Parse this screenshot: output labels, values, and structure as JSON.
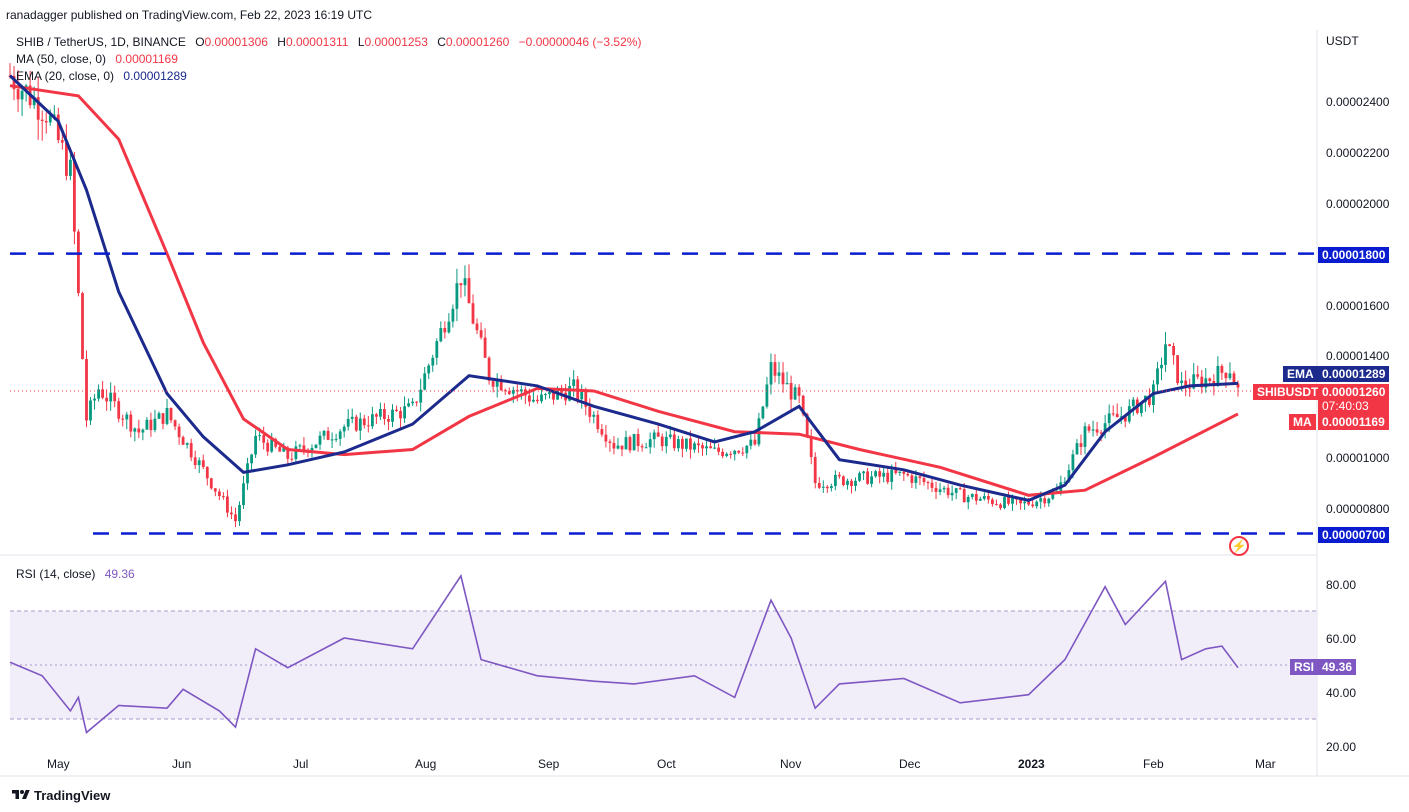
{
  "header": {
    "publisher": "ranadagger published on TradingView.com, Feb 22, 2023 16:19 UTC"
  },
  "symbol": {
    "name": "SHIB / TetherUS, 1D, BINANCE",
    "o_label": "O",
    "o": "0.00001306",
    "h_label": "H",
    "h": "0.00001311",
    "l_label": "L",
    "l": "0.00001253",
    "c_label": "C",
    "c": "0.00001260",
    "change": "−0.00000046 (−3.52%)"
  },
  "indicators": {
    "ma_label": "MA (50, close, 0)",
    "ma_value": "0.00001169",
    "ema_label": "EMA (20, close, 0)",
    "ema_value": "0.00001289",
    "rsi_label": "RSI (14, close)",
    "rsi_value": "49.36"
  },
  "axis": {
    "currency": "USDT",
    "price_ticks": [
      "0.00002400",
      "0.00002200",
      "0.00002000",
      "0.00001600",
      "0.00001400",
      "0.00001000",
      "0.00000800"
    ],
    "rsi_ticks": [
      "80.00",
      "60.00",
      "40.00",
      "20.00"
    ],
    "months": [
      "May",
      "Jun",
      "Jul",
      "Aug",
      "Sep",
      "Oct",
      "Nov",
      "Dec",
      "2023",
      "Feb",
      "Mar"
    ]
  },
  "tags": {
    "level_high": "0.00001800",
    "level_low": "0.00000700",
    "ema_tag": "EMA",
    "ema_val": "0.00001289",
    "sym_tag": "SHIBUSDT",
    "sym_val": "0.00001260",
    "countdown": "07:40:03",
    "ma_tag": "MA",
    "ma_val": "0.00001169",
    "rsi_tag": "RSI",
    "rsi_val": "49.36"
  },
  "footer": {
    "brand": "TradingView"
  },
  "colors": {
    "up": "#089981",
    "down": "#f23645",
    "ema": "#1b2a8c",
    "ma": "#f23645",
    "rsi": "#7e57c2",
    "level": "#0a1cd0"
  },
  "chart_data": {
    "type": "candlestick",
    "price_range": [
      6.3e-06,
      2.62e-05
    ],
    "rsi_range": [
      16,
      90
    ],
    "levels": [
      1.8e-05,
      7e-06
    ],
    "ema20": [
      [
        "2022-04-23",
        2.5e-05
      ],
      [
        "2022-05-05",
        2.32e-05
      ],
      [
        "2022-05-12",
        2.05e-05
      ],
      [
        "2022-05-20",
        1.65e-05
      ],
      [
        "2022-06-01",
        1.25e-05
      ],
      [
        "2022-06-10",
        1.08e-05
      ],
      [
        "2022-06-20",
        9.4e-06
      ],
      [
        "2022-07-01",
        9.7e-06
      ],
      [
        "2022-07-15",
        1.02e-05
      ],
      [
        "2022-08-01",
        1.13e-05
      ],
      [
        "2022-08-15",
        1.32e-05
      ],
      [
        "2022-09-01",
        1.28e-05
      ],
      [
        "2022-09-15",
        1.2e-05
      ],
      [
        "2022-10-01",
        1.13e-05
      ],
      [
        "2022-10-15",
        1.06e-05
      ],
      [
        "2022-10-25",
        1.1e-05
      ],
      [
        "2022-11-05",
        1.2e-05
      ],
      [
        "2022-11-15",
        9.9e-06
      ],
      [
        "2022-12-01",
        9.5e-06
      ],
      [
        "2022-12-15",
        8.9e-06
      ],
      [
        "2023-01-01",
        8.3e-06
      ],
      [
        "2023-01-10",
        8.9e-06
      ],
      [
        "2023-01-20",
        1.1e-05
      ],
      [
        "2023-02-01",
        1.25e-05
      ],
      [
        "2023-02-10",
        1.28e-05
      ],
      [
        "2023-02-22",
        1.29e-05
      ]
    ],
    "ma50": [
      [
        "2022-04-23",
        2.46e-05
      ],
      [
        "2022-05-10",
        2.42e-05
      ],
      [
        "2022-05-20",
        2.25e-05
      ],
      [
        "2022-06-01",
        1.8e-05
      ],
      [
        "2022-06-10",
        1.45e-05
      ],
      [
        "2022-06-20",
        1.15e-05
      ],
      [
        "2022-07-01",
        1.03e-05
      ],
      [
        "2022-07-15",
        1.01e-05
      ],
      [
        "2022-08-01",
        1.03e-05
      ],
      [
        "2022-08-15",
        1.16e-05
      ],
      [
        "2022-09-01",
        1.27e-05
      ],
      [
        "2022-09-15",
        1.26e-05
      ],
      [
        "2022-10-01",
        1.18e-05
      ],
      [
        "2022-10-20",
        1.1e-05
      ],
      [
        "2022-11-05",
        1.09e-05
      ],
      [
        "2022-11-20",
        1.03e-05
      ],
      [
        "2022-12-10",
        9.6e-06
      ],
      [
        "2023-01-01",
        8.5e-06
      ],
      [
        "2023-01-15",
        8.7e-06
      ],
      [
        "2023-02-01",
        1e-05
      ],
      [
        "2023-02-22",
        1.17e-05
      ]
    ],
    "price_path": [
      [
        "2022-04-23",
        2.5e-05
      ],
      [
        "2022-05-02",
        2.36e-05
      ],
      [
        "2022-05-08",
        2.12e-05
      ],
      [
        "2022-05-10",
        1.63e-05
      ],
      [
        "2022-05-12",
        1.15e-05
      ],
      [
        "2022-05-15",
        1.27e-05
      ],
      [
        "2022-05-25",
        1.1e-05
      ],
      [
        "2022-06-01",
        1.17e-05
      ],
      [
        "2022-06-12",
        9e-06
      ],
      [
        "2022-06-18",
        7.5e-06
      ],
      [
        "2022-06-23",
        1.08e-05
      ],
      [
        "2022-07-01",
        1e-05
      ],
      [
        "2022-07-15",
        1.12e-05
      ],
      [
        "2022-08-01",
        1.19e-05
      ],
      [
        "2022-08-13",
        1.71e-05
      ],
      [
        "2022-08-20",
        1.32e-05
      ],
      [
        "2022-09-01",
        1.22e-05
      ],
      [
        "2022-09-10",
        1.27e-05
      ],
      [
        "2022-09-20",
        1.05e-05
      ],
      [
        "2022-10-01",
        1.07e-05
      ],
      [
        "2022-10-15",
        1.02e-05
      ],
      [
        "2022-10-25",
        1.05e-05
      ],
      [
        "2022-10-29",
        1.35e-05
      ],
      [
        "2022-11-05",
        1.22e-05
      ],
      [
        "2022-11-09",
        9e-06
      ],
      [
        "2022-11-15",
        9.1e-06
      ],
      [
        "2022-12-01",
        9.3e-06
      ],
      [
        "2022-12-15",
        8.5e-06
      ],
      [
        "2022-12-30",
        8.1e-06
      ],
      [
        "2023-01-08",
        8.6e-06
      ],
      [
        "2023-01-15",
        1.1e-05
      ],
      [
        "2023-01-25",
        1.17e-05
      ],
      [
        "2023-02-01",
        1.25e-05
      ],
      [
        "2023-02-04",
        1.45e-05
      ],
      [
        "2023-02-08",
        1.28e-05
      ],
      [
        "2023-02-15",
        1.31e-05
      ],
      [
        "2023-02-20",
        1.35e-05
      ],
      [
        "2023-02-22",
        1.26e-05
      ]
    ],
    "rsi": [
      [
        "2022-04-23",
        51
      ],
      [
        "2022-05-01",
        46
      ],
      [
        "2022-05-08",
        33
      ],
      [
        "2022-05-10",
        38
      ],
      [
        "2022-05-12",
        25
      ],
      [
        "2022-05-20",
        35
      ],
      [
        "2022-06-01",
        34
      ],
      [
        "2022-06-05",
        41
      ],
      [
        "2022-06-14",
        33
      ],
      [
        "2022-06-18",
        27
      ],
      [
        "2022-06-23",
        56
      ],
      [
        "2022-07-01",
        49
      ],
      [
        "2022-07-15",
        60
      ],
      [
        "2022-08-01",
        56
      ],
      [
        "2022-08-13",
        83
      ],
      [
        "2022-08-18",
        52
      ],
      [
        "2022-09-01",
        46
      ],
      [
        "2022-09-15",
        44
      ],
      [
        "2022-09-25",
        43
      ],
      [
        "2022-10-10",
        46
      ],
      [
        "2022-10-20",
        38
      ],
      [
        "2022-10-29",
        74
      ],
      [
        "2022-11-03",
        60
      ],
      [
        "2022-11-09",
        34
      ],
      [
        "2022-11-15",
        43
      ],
      [
        "2022-12-01",
        45
      ],
      [
        "2022-12-15",
        36
      ],
      [
        "2023-01-01",
        39
      ],
      [
        "2023-01-10",
        52
      ],
      [
        "2023-01-20",
        79
      ],
      [
        "2023-01-25",
        65
      ],
      [
        "2023-02-04",
        81
      ],
      [
        "2023-02-08",
        52
      ],
      [
        "2023-02-14",
        56
      ],
      [
        "2023-02-18",
        57
      ],
      [
        "2023-02-22",
        49
      ]
    ]
  }
}
